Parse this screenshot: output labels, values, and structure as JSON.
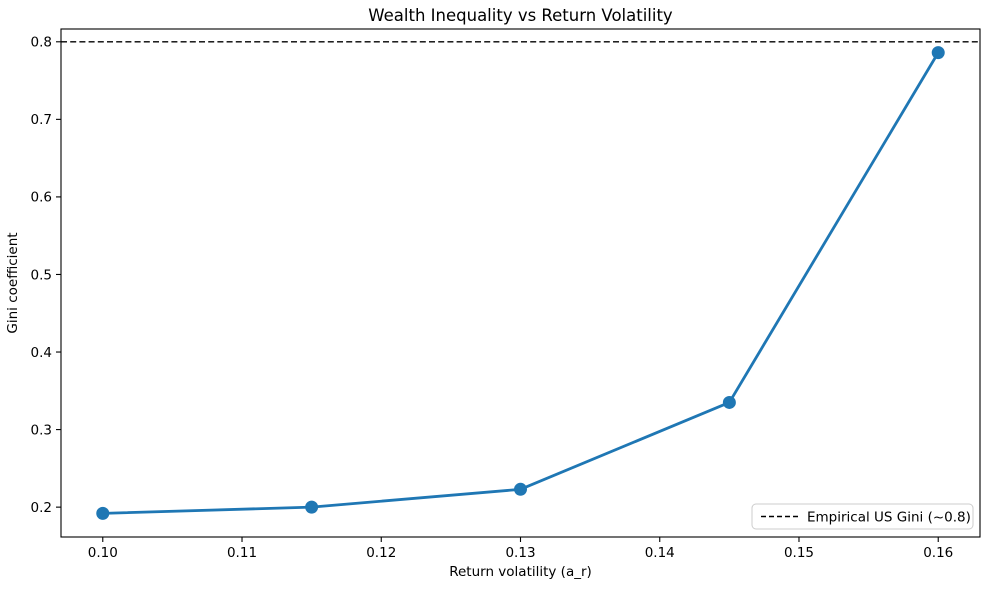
{
  "figure": {
    "background": "#ffffff",
    "border_color": "#000000"
  },
  "chart_data": {
    "type": "line",
    "title": "Wealth Inequality vs Return Volatility",
    "xlabel": "Return volatility (a_r)",
    "ylabel": "Gini coefficient",
    "series": [
      {
        "name": "Gini coefficient",
        "color": "#1f77b4",
        "marker": "circle",
        "x": [
          0.1,
          0.115,
          0.13,
          0.145,
          0.16
        ],
        "y": [
          0.192,
          0.2,
          0.223,
          0.335,
          0.786
        ]
      }
    ],
    "reference_lines": [
      {
        "y": 0.8,
        "label": "Empirical US Gini (~0.8)",
        "color": "#000000",
        "style": "dashed"
      }
    ],
    "xlim": [
      0.097,
      0.163
    ],
    "ylim": [
      0.1615,
      0.8165
    ],
    "xticks": {
      "values": [
        0.1,
        0.11,
        0.12,
        0.13,
        0.14,
        0.15,
        0.16
      ],
      "labels": [
        "0.10",
        "0.11",
        "0.12",
        "0.13",
        "0.14",
        "0.15",
        "0.16"
      ]
    },
    "yticks": {
      "values": [
        0.2,
        0.3,
        0.4,
        0.5,
        0.6,
        0.7,
        0.8
      ],
      "labels": [
        "0.2",
        "0.3",
        "0.4",
        "0.5",
        "0.6",
        "0.7",
        "0.8"
      ]
    },
    "legend": {
      "position": "lower right",
      "border_color": "#cccccc",
      "background": "#ffffff",
      "entries": [
        {
          "label": "Empirical US Gini (~0.8)",
          "line_style": "dashed",
          "color": "#000000"
        }
      ]
    },
    "grid": false
  }
}
